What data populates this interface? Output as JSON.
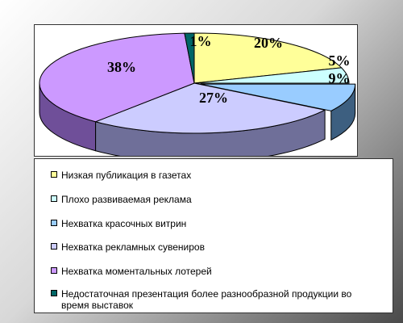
{
  "chart_data": {
    "type": "pie",
    "style": "3d-exploded",
    "slices": [
      {
        "label": "Низкая публикация в газетах",
        "value": 20,
        "value_label": "20%",
        "color": "#ffff99",
        "side_color": "#99994f"
      },
      {
        "label": "Плохо развиваемая реклама",
        "value": 5,
        "value_label": "5%",
        "color": "#ccffff",
        "side_color": "#5f8c8c"
      },
      {
        "label": "Нехватка красочных витрин",
        "value": 9,
        "value_label": "9%",
        "color": "#99ccff",
        "side_color": "#3d5f80"
      },
      {
        "label": "Нехватка рекламных сувениров",
        "value": 27,
        "value_label": "27%",
        "color": "#ccccff",
        "side_color": "#6f6f99"
      },
      {
        "label": "Нехватка моментальных лотерей",
        "value": 38,
        "value_label": "38%",
        "color": "#cc99ff",
        "side_color": "#6f4f99"
      },
      {
        "label": "Недостаточная презентация более разнообразной продукции во время выставок",
        "value": 1,
        "value_label": "1%",
        "color": "#006666",
        "side_color": "#003333"
      }
    ],
    "legend_position": "bottom"
  }
}
